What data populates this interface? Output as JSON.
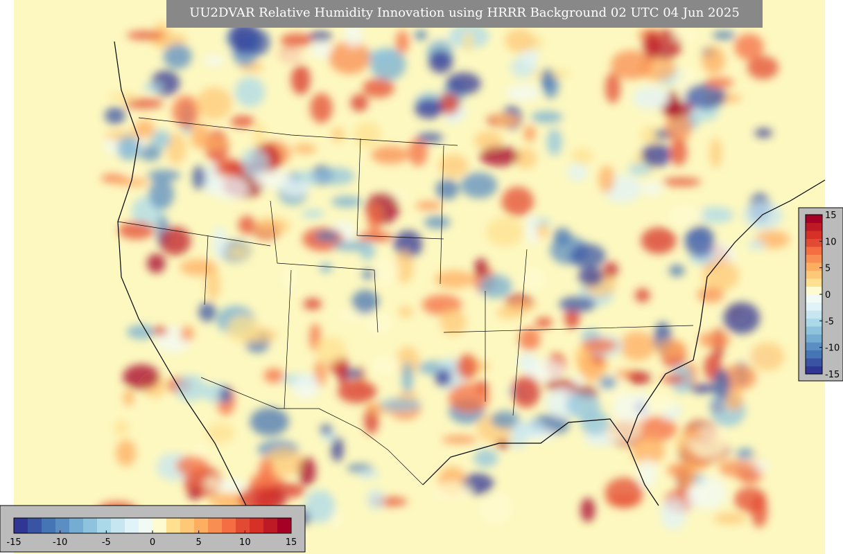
{
  "title": "UU2DVAR Relative Humidity Innovation using HRRR Background 02 UTC 04 Jun 2025",
  "colorbar": {
    "range": [
      -15,
      15
    ],
    "ticks": [
      -15,
      -10,
      -5,
      0,
      5,
      10,
      15
    ],
    "colors": [
      "#313695",
      "#3a54a4",
      "#4575b4",
      "#5b8ec2",
      "#74add1",
      "#8fc3dd",
      "#abd9e9",
      "#c7e6f0",
      "#e0f3f8",
      "#f2faf5",
      "#fffbd0",
      "#fee090",
      "#fdc878",
      "#fdae61",
      "#f88e52",
      "#f46d43",
      "#e34a33",
      "#d73027",
      "#bd1a26",
      "#a50026"
    ]
  }
}
